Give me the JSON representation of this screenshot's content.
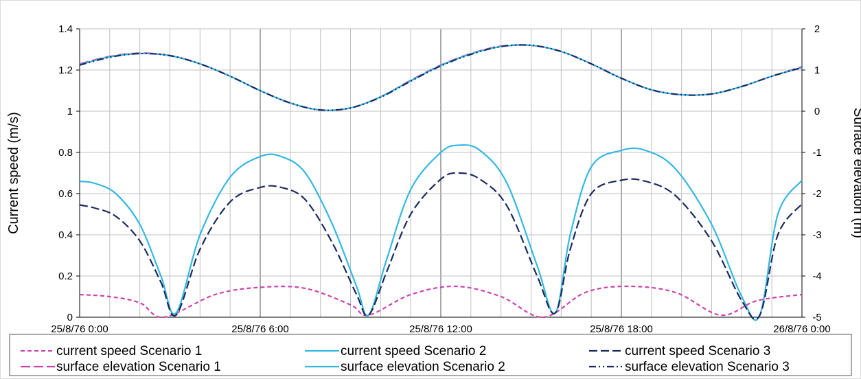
{
  "chart_data": {
    "type": "line",
    "x_ticks": [
      "25/8/76 0:00",
      "25/8/76 6:00",
      "25/8/76 12:00",
      "25/8/76 18:00",
      "26/8/76 0:00"
    ],
    "x_range_hours": [
      0,
      24
    ],
    "y_left": {
      "label": "Current speed (m/s)",
      "ticks": [
        "0",
        "0.2",
        "0.4",
        "0.6",
        "0.8",
        "1",
        "1.2",
        "1.4"
      ],
      "range": [
        0,
        1.4
      ]
    },
    "y_right": {
      "label": "Surface elevation (m)",
      "ticks": [
        "-5",
        "-4",
        "-3",
        "-2",
        "-1",
        "0",
        "1",
        "2"
      ],
      "range": [
        -5,
        2
      ]
    },
    "grid": true,
    "legend_position": "bottom",
    "colors": {
      "scenario1": "#cc44aa",
      "scenario2": "#33b8e0",
      "scenario3": "#1a2a5e"
    },
    "series": [
      {
        "name": "current speed Scenario 1",
        "axis": "left",
        "color": "#cc44aa",
        "dash": "6,4",
        "x": [
          0,
          1,
          2,
          2.8,
          4.5,
          6,
          7.5,
          9,
          9.6,
          11,
          12.5,
          14,
          15.4,
          16.8,
          18.2,
          19.8,
          21.3,
          22.5,
          24
        ],
        "y": [
          0.11,
          0.1,
          0.07,
          0.0,
          0.11,
          0.145,
          0.14,
          0.06,
          0.01,
          0.11,
          0.15,
          0.1,
          0.0,
          0.12,
          0.15,
          0.12,
          0.01,
          0.08,
          0.11
        ]
      },
      {
        "name": "current speed Scenario 2",
        "axis": "left",
        "color": "#33b8e0",
        "dash": "",
        "x": [
          0,
          0.5,
          1.2,
          2,
          2.7,
          3.2,
          4,
          5,
          6,
          6.7,
          7.5,
          8.4,
          9.2,
          9.6,
          10.2,
          11,
          12,
          12.6,
          13.3,
          14.2,
          15.2,
          15.8,
          16.3,
          17,
          18,
          18.8,
          19.8,
          21,
          22,
          22.6,
          23.2,
          24
        ],
        "y": [
          0.66,
          0.65,
          0.6,
          0.45,
          0.2,
          0.02,
          0.4,
          0.68,
          0.78,
          0.78,
          0.7,
          0.45,
          0.15,
          0.01,
          0.28,
          0.62,
          0.8,
          0.835,
          0.81,
          0.65,
          0.25,
          0.02,
          0.4,
          0.73,
          0.81,
          0.81,
          0.72,
          0.45,
          0.1,
          0.01,
          0.5,
          0.665
        ]
      },
      {
        "name": "current speed Scenario 3",
        "axis": "left",
        "color": "#1a2a5e",
        "dash": "12,5",
        "x": [
          0,
          0.5,
          1.2,
          2,
          2.7,
          3.2,
          4,
          5,
          6,
          6.7,
          7.5,
          8.4,
          9.2,
          9.6,
          10.2,
          11,
          12,
          12.6,
          13.3,
          14.2,
          15.2,
          15.8,
          16.3,
          17,
          18,
          18.8,
          19.8,
          21,
          22,
          22.6,
          23.2,
          24
        ],
        "y": [
          0.545,
          0.53,
          0.49,
          0.37,
          0.17,
          0.01,
          0.33,
          0.56,
          0.63,
          0.63,
          0.57,
          0.36,
          0.11,
          0.01,
          0.22,
          0.5,
          0.67,
          0.7,
          0.67,
          0.54,
          0.2,
          0.02,
          0.33,
          0.6,
          0.665,
          0.66,
          0.59,
          0.37,
          0.08,
          0.01,
          0.4,
          0.55
        ]
      },
      {
        "name": "surface elevation Scenario 1",
        "axis": "right",
        "color": "#cc44aa",
        "dash": "14,5",
        "x": [
          0,
          1,
          2,
          3,
          4,
          5,
          6,
          7,
          8,
          9,
          10,
          11,
          12,
          13,
          14,
          15,
          16,
          17,
          18,
          19,
          20,
          21,
          22,
          23,
          24
        ],
        "y": [
          1.15,
          1.33,
          1.41,
          1.35,
          1.15,
          0.85,
          0.5,
          0.2,
          0.03,
          0.08,
          0.35,
          0.75,
          1.12,
          1.4,
          1.58,
          1.6,
          1.45,
          1.15,
          0.8,
          0.52,
          0.4,
          0.42,
          0.6,
          0.85,
          1.08
        ]
      },
      {
        "name": "surface elevation Scenario 2",
        "axis": "right",
        "color": "#33b8e0",
        "dash": "",
        "x": [
          0,
          1,
          2,
          3,
          4,
          5,
          6,
          7,
          8,
          9,
          10,
          11,
          12,
          13,
          14,
          15,
          16,
          17,
          18,
          19,
          20,
          21,
          22,
          23,
          24
        ],
        "y": [
          1.13,
          1.32,
          1.4,
          1.35,
          1.15,
          0.85,
          0.5,
          0.2,
          0.03,
          0.08,
          0.35,
          0.74,
          1.11,
          1.39,
          1.57,
          1.6,
          1.45,
          1.15,
          0.8,
          0.52,
          0.4,
          0.42,
          0.6,
          0.85,
          1.06
        ]
      },
      {
        "name": "surface elevation Scenario 3",
        "axis": "right",
        "color": "#1a2a5e",
        "dash": "10,4,2,4,2,4",
        "x": [
          0,
          1,
          2,
          3,
          4,
          5,
          6,
          7,
          8,
          9,
          10,
          11,
          12,
          13,
          14,
          15,
          16,
          17,
          18,
          19,
          20,
          21,
          22,
          23,
          24
        ],
        "y": [
          1.12,
          1.31,
          1.4,
          1.35,
          1.15,
          0.85,
          0.5,
          0.2,
          0.03,
          0.08,
          0.34,
          0.73,
          1.1,
          1.38,
          1.57,
          1.6,
          1.45,
          1.15,
          0.8,
          0.52,
          0.4,
          0.42,
          0.6,
          0.85,
          1.06
        ]
      }
    ],
    "legend": [
      {
        "label": "current speed Scenario 1",
        "series": 0
      },
      {
        "label": "current speed Scenario 2",
        "series": 1
      },
      {
        "label": "current speed Scenario 3",
        "series": 2
      },
      {
        "label": "surface elevation Scenario 1",
        "series": 3
      },
      {
        "label": "surface elevation Scenario 2",
        "series": 4
      },
      {
        "label": "surface elevation Scenario 3",
        "series": 5
      }
    ]
  }
}
